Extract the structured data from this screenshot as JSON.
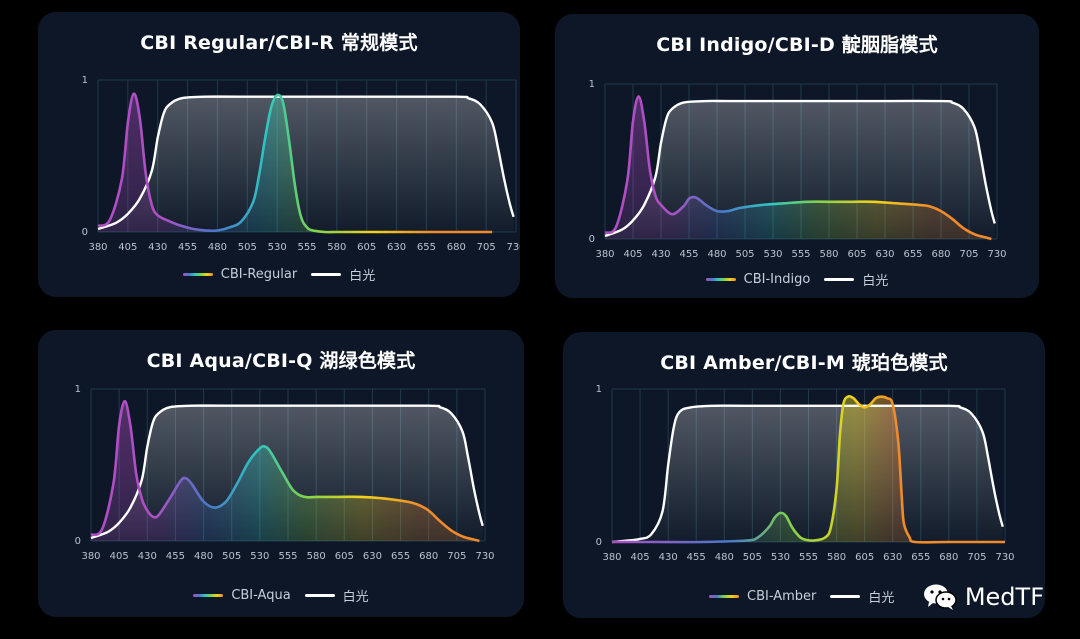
{
  "colors": {
    "background": "#000000",
    "panel": "#0d1727",
    "grid": "#1f3a4c",
    "white_light": "#ffffff",
    "violet": "#b04fc4",
    "blue": "#4a78c8",
    "cyan": "#2fc7c0",
    "green": "#7fd34b",
    "yellow": "#f2d21a",
    "orange": "#f08a2a"
  },
  "watermark": {
    "icon": "wechat-icon",
    "text": "MedTF"
  },
  "charts": [
    {
      "title": "CBI Regular/CBI-R 常规模式",
      "legend": [
        "CBI-Regular",
        "白光"
      ],
      "gradient": "rainbow"
    },
    {
      "title": "CBI Indigo/CBI-D 靛胭脂模式",
      "legend": [
        "CBI-Indigo",
        "白光"
      ],
      "gradient": "rainbow"
    },
    {
      "title": "CBI Aqua/CBI-Q 湖绿色模式",
      "legend": [
        "CBI-Aqua",
        "白光"
      ],
      "gradient": "rainbow"
    },
    {
      "title": "CBI Amber/CBI-M 琥珀色模式",
      "legend": [
        "CBI-Amber",
        "白光"
      ],
      "gradient": "amber"
    }
  ],
  "chart_data": [
    {
      "type": "area",
      "title": "CBI Regular/CBI-R 常规模式",
      "xlabel": "",
      "ylabel": "",
      "xlim": [
        380,
        730
      ],
      "ylim": [
        0,
        1
      ],
      "x_ticks": [
        380,
        405,
        430,
        455,
        480,
        505,
        530,
        555,
        580,
        605,
        630,
        655,
        680,
        705,
        730
      ],
      "y_ticks": [
        0,
        1
      ],
      "legend_position": "bottom",
      "series": [
        {
          "name": "CBI-Regular",
          "x": [
            380,
            390,
            400,
            405,
            410,
            415,
            420,
            425,
            430,
            440,
            450,
            460,
            470,
            480,
            490,
            500,
            510,
            515,
            520,
            525,
            530,
            535,
            540,
            545,
            550,
            555,
            560,
            570,
            580,
            600,
            630,
            660,
            690,
            705,
            710
          ],
          "y": [
            0.04,
            0.08,
            0.35,
            0.72,
            0.91,
            0.75,
            0.38,
            0.18,
            0.11,
            0.07,
            0.04,
            0.02,
            0.01,
            0.01,
            0.03,
            0.07,
            0.2,
            0.38,
            0.62,
            0.82,
            0.9,
            0.85,
            0.6,
            0.3,
            0.1,
            0.03,
            0.01,
            0.0,
            0.0,
            0.0,
            0.0,
            0.0,
            0.0,
            0.0,
            0.0
          ]
        },
        {
          "name": "白光",
          "x": [
            380,
            395,
            405,
            415,
            425,
            430,
            435,
            440,
            450,
            470,
            500,
            600,
            680,
            690,
            700,
            710,
            715,
            720,
            725,
            728
          ],
          "y": [
            0.02,
            0.06,
            0.12,
            0.22,
            0.4,
            0.62,
            0.78,
            0.84,
            0.88,
            0.89,
            0.89,
            0.89,
            0.89,
            0.88,
            0.84,
            0.72,
            0.55,
            0.35,
            0.18,
            0.1
          ]
        }
      ]
    },
    {
      "type": "area",
      "title": "CBI Indigo/CBI-D 靛胭脂模式",
      "xlabel": "",
      "ylabel": "",
      "xlim": [
        380,
        730
      ],
      "ylim": [
        0,
        1
      ],
      "x_ticks": [
        380,
        405,
        430,
        455,
        480,
        505,
        530,
        555,
        580,
        605,
        630,
        655,
        680,
        705,
        730
      ],
      "y_ticks": [
        0,
        1
      ],
      "legend_position": "bottom",
      "series": [
        {
          "name": "CBI-Indigo",
          "x": [
            380,
            390,
            400,
            405,
            410,
            415,
            420,
            425,
            430,
            440,
            450,
            455,
            460,
            465,
            470,
            480,
            490,
            500,
            520,
            540,
            560,
            580,
            600,
            620,
            640,
            660,
            670,
            680,
            690,
            700,
            710,
            720,
            725
          ],
          "y": [
            0.04,
            0.08,
            0.38,
            0.76,
            0.92,
            0.76,
            0.45,
            0.28,
            0.22,
            0.16,
            0.21,
            0.26,
            0.27,
            0.25,
            0.22,
            0.18,
            0.18,
            0.2,
            0.22,
            0.23,
            0.24,
            0.24,
            0.24,
            0.24,
            0.23,
            0.22,
            0.21,
            0.18,
            0.13,
            0.07,
            0.03,
            0.01,
            0.0
          ]
        },
        {
          "name": "白光",
          "x": [
            380,
            395,
            405,
            415,
            425,
            430,
            435,
            440,
            450,
            470,
            500,
            600,
            680,
            690,
            700,
            710,
            715,
            720,
            725,
            728
          ],
          "y": [
            0.02,
            0.06,
            0.12,
            0.22,
            0.4,
            0.62,
            0.78,
            0.84,
            0.88,
            0.89,
            0.89,
            0.89,
            0.89,
            0.88,
            0.84,
            0.72,
            0.55,
            0.35,
            0.18,
            0.1
          ]
        }
      ]
    },
    {
      "type": "area",
      "title": "CBI Aqua/CBI-Q 湖绿色模式",
      "xlabel": "",
      "ylabel": "",
      "xlim": [
        380,
        730
      ],
      "ylim": [
        0,
        1
      ],
      "x_ticks": [
        380,
        405,
        430,
        455,
        480,
        505,
        530,
        555,
        580,
        605,
        630,
        655,
        680,
        705,
        730
      ],
      "y_ticks": [
        0,
        1
      ],
      "legend_position": "bottom",
      "series": [
        {
          "name": "CBI-Aqua",
          "x": [
            380,
            390,
            400,
            405,
            410,
            415,
            420,
            425,
            430,
            435,
            440,
            450,
            460,
            465,
            470,
            480,
            490,
            500,
            510,
            520,
            530,
            535,
            540,
            550,
            560,
            570,
            580,
            600,
            620,
            640,
            660,
            670,
            680,
            690,
            700,
            710,
            720,
            725
          ],
          "y": [
            0.04,
            0.08,
            0.38,
            0.76,
            0.92,
            0.76,
            0.45,
            0.28,
            0.2,
            0.16,
            0.17,
            0.28,
            0.4,
            0.41,
            0.37,
            0.26,
            0.22,
            0.26,
            0.38,
            0.52,
            0.61,
            0.62,
            0.58,
            0.45,
            0.33,
            0.29,
            0.29,
            0.29,
            0.29,
            0.28,
            0.26,
            0.24,
            0.2,
            0.13,
            0.07,
            0.03,
            0.01,
            0.0
          ]
        },
        {
          "name": "白光",
          "x": [
            380,
            395,
            405,
            415,
            425,
            430,
            435,
            440,
            450,
            470,
            500,
            600,
            680,
            690,
            700,
            710,
            715,
            720,
            725,
            728
          ],
          "y": [
            0.02,
            0.06,
            0.12,
            0.22,
            0.4,
            0.62,
            0.78,
            0.84,
            0.88,
            0.89,
            0.89,
            0.89,
            0.89,
            0.88,
            0.84,
            0.72,
            0.55,
            0.35,
            0.18,
            0.1
          ]
        }
      ]
    },
    {
      "type": "area",
      "title": "CBI Amber/CBI-M 琥珀色模式",
      "xlabel": "",
      "ylabel": "",
      "xlim": [
        380,
        730
      ],
      "ylim": [
        0,
        1
      ],
      "x_ticks": [
        380,
        405,
        430,
        455,
        480,
        505,
        530,
        555,
        580,
        605,
        630,
        655,
        680,
        705,
        730
      ],
      "y_ticks": [
        0,
        1
      ],
      "legend_position": "bottom",
      "series": [
        {
          "name": "CBI-Amber",
          "x": [
            380,
            420,
            460,
            500,
            510,
            520,
            525,
            530,
            535,
            540,
            545,
            550,
            560,
            570,
            575,
            580,
            583,
            586,
            590,
            595,
            600,
            605,
            610,
            615,
            620,
            625,
            630,
            635,
            638,
            640,
            645,
            650,
            680,
            730
          ],
          "y": [
            0.0,
            0.0,
            0.0,
            0.01,
            0.03,
            0.1,
            0.16,
            0.19,
            0.17,
            0.1,
            0.05,
            0.02,
            0.01,
            0.03,
            0.1,
            0.35,
            0.7,
            0.9,
            0.95,
            0.94,
            0.9,
            0.88,
            0.9,
            0.94,
            0.95,
            0.94,
            0.9,
            0.65,
            0.3,
            0.12,
            0.03,
            0.0,
            0.0,
            0.0
          ]
        },
        {
          "name": "白光",
          "x": [
            380,
            395,
            405,
            415,
            425,
            430,
            435,
            440,
            450,
            470,
            500,
            600,
            680,
            690,
            700,
            710,
            715,
            720,
            725,
            728
          ],
          "y": [
            0.0,
            0.01,
            0.02,
            0.05,
            0.2,
            0.5,
            0.75,
            0.85,
            0.88,
            0.89,
            0.89,
            0.89,
            0.89,
            0.88,
            0.84,
            0.72,
            0.55,
            0.35,
            0.18,
            0.1
          ]
        }
      ]
    }
  ]
}
